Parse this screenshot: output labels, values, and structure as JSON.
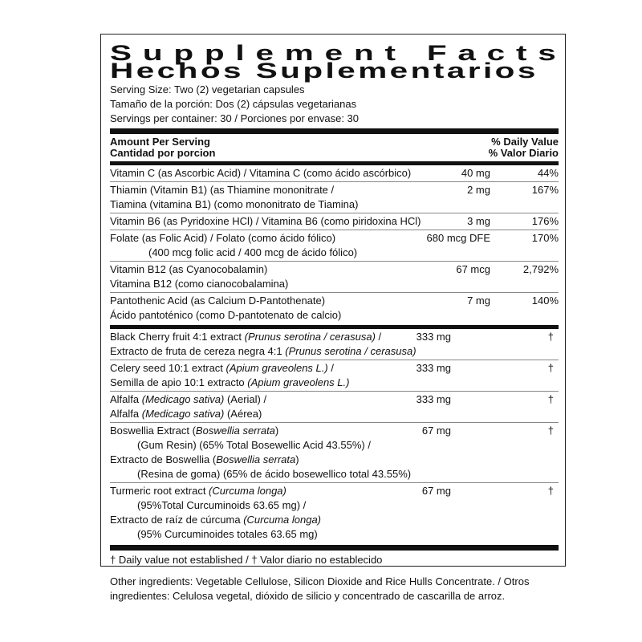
{
  "title": {
    "en": "Supplement Facts",
    "es": "Hechos Suplementarios"
  },
  "serving": [
    "Serving Size: Two (2) vegetarian capsules",
    "Tamaño de la porción: Dos (2) cápsulas vegetarianas",
    "Servings per container: 30 / Porciones por envase: 30"
  ],
  "header": {
    "amount_en": "Amount Per Serving",
    "amount_es": "Cantidad por porcion",
    "dv_en": "% Daily Value",
    "dv_es": "% Valor Diario"
  },
  "vitamins": [
    {
      "l1": "Vitamin C (as Ascorbic Acid) / Vitamina C (como ácido ascórbico)",
      "amount": "40 mg",
      "dv": "44%"
    },
    {
      "l1": "Thiamin (Vitamin B1) (as Thiamine mononitrate /",
      "l2": "Tiamina (vitamina B1) (como mononitrato de Tiamina)",
      "amount": "2 mg",
      "dv": "167%"
    },
    {
      "l1": "Vitamin B6 (as Pyridoxine HCl) / Vitamina B6 (como piridoxina HCl)",
      "amount": "3 mg",
      "dv": "176%"
    },
    {
      "l1": "Folate (as Folic Acid) / Folato (como ácido fólico)",
      "l2": "(400 mcg folic acid / 400 mcg de ácido fólico)",
      "amount": "680 mcg DFE",
      "dv": "170%"
    },
    {
      "l1": "Vitamin B12 (as Cyanocobalamin)",
      "l2": "Vitamina B12 (como cianocobalamina)",
      "amount": "67 mcg",
      "dv": "2,792%"
    },
    {
      "l1": "Pantothenic Acid (as Calcium D-Pantothenate)",
      "l2": "Ácido pantoténico (como D-pantotenato de calcio)",
      "amount": "7 mg",
      "dv": "140%"
    }
  ],
  "botanicals": [
    {
      "a": "Black Cherry fruit 4:1 extract ",
      "ai": "(Prunus serotina / cerasusa)",
      "a2": " /",
      "b": "Extracto de fruta de cereza negra 4:1 ",
      "bi": "(Prunus serotina / cerasusa)",
      "b2": "",
      "amount": "333 mg",
      "dv": "†"
    },
    {
      "a": "Celery seed 10:1 extract ",
      "ai": "(Apium graveolens L.)",
      "a2": " /",
      "b": "Semilla de apio 10:1 extracto ",
      "bi": "(Apium graveolens L.)",
      "b2": "",
      "amount": "333 mg",
      "dv": "†"
    },
    {
      "a": "Alfalfa ",
      "ai": "(Medicago sativa)",
      "a2": " (Aerial)  /",
      "b": "Alfalfa ",
      "bi": "(Medicago sativa)",
      "b2": " (Aérea)",
      "amount": "333 mg",
      "dv": "†"
    },
    {
      "a": "Boswellia Extract (",
      "ai": "Boswellia serrata",
      "a2": ")",
      "a3": "(Gum Resin) (65% Total Bosewellic Acid 43.55%) /",
      "b": "Extracto de Boswellia (",
      "bi": "Boswellia serrata",
      "b2": ")",
      "b3": "(Resina de goma) (65% de ácido bosewellico total 43.55%)",
      "amount": "67 mg",
      "dv": "†"
    },
    {
      "a": "Turmeric root extract ",
      "ai": "(Curcuma longa)",
      "a2": "",
      "a3": "(95%Total Curcuminoids 63.65 mg) /",
      "b": "Extracto de raíz de cúrcuma ",
      "bi": "(Curcuma longa)",
      "b2": "",
      "b3": "(95% Curcuminoides totales 63.65 mg)",
      "amount": "67 mg",
      "dv": "†"
    }
  ],
  "footnote": "† Daily value not established  / † Valor diario no establecido",
  "other_ingredients": "Other ingredients: Vegetable Cellulose, Silicon Dioxide and Rice Hulls Concentrate. / Otros ingredientes: Celulosa vegetal, dióxido de silicio y concentrado de cascarilla de arroz."
}
